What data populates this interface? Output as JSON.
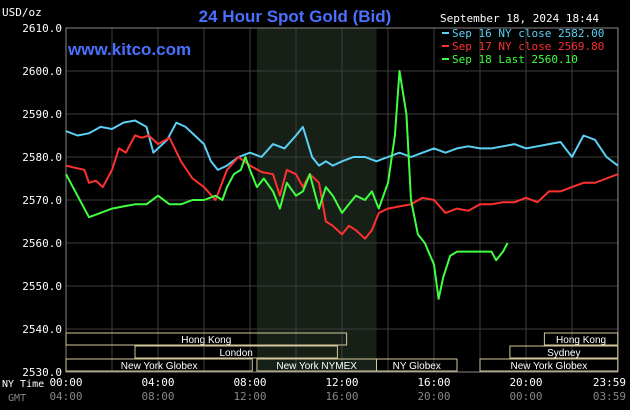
{
  "chart_data": {
    "type": "line",
    "title": "24 Hour Spot Gold (Bid)",
    "brand": "www.kitco.com",
    "timestamp": "September 18, 2024 18:44",
    "y_unit": "USD/oz",
    "ylim": [
      2530,
      2610
    ],
    "y_ticks": [
      "2610.0",
      "2600.0",
      "2590.0",
      "2580.0",
      "2570.0",
      "2560.0",
      "2550.0",
      "2540.0",
      "2530.0"
    ],
    "x_range_hours": [
      0,
      24
    ],
    "x_tick_labels_ny": [
      "00:00",
      "04:00",
      "08:00",
      "12:00",
      "16:00",
      "20:00",
      "23:59"
    ],
    "x_tick_labels_gmt": [
      "04:00",
      "08:00",
      "12:00",
      "16:00",
      "20:00",
      "00:00",
      "03:59"
    ],
    "row_label_ny": "NY Time",
    "row_label_gmt": "GMT",
    "grid": true,
    "legend_position": "top-right",
    "series": [
      {
        "name": "Sep 16 NY close 2582.00",
        "color": "#5ad0f5",
        "x": [
          0,
          0.5,
          1,
          1.5,
          2,
          2.5,
          3,
          3.5,
          3.8,
          4,
          4.4,
          4.8,
          5.2,
          5.6,
          6,
          6.3,
          6.6,
          7,
          7.5,
          8,
          8.5,
          9,
          9.5,
          10,
          10.3,
          10.7,
          11,
          11.3,
          11.6,
          12,
          12.5,
          13,
          13.5,
          14,
          14.5,
          15,
          15.5,
          16,
          16.5,
          17,
          17.5,
          18,
          18.5,
          19,
          19.5,
          20,
          20.5,
          21,
          21.5,
          22,
          22.5,
          23,
          23.5,
          23.99
        ],
        "y": [
          2586,
          2585,
          2585.5,
          2587,
          2586.5,
          2588,
          2588.5,
          2587,
          2581,
          2582,
          2584,
          2588,
          2587,
          2585,
          2583,
          2579,
          2577,
          2578,
          2580,
          2581,
          2580,
          2583,
          2582,
          2585,
          2587,
          2580,
          2578,
          2579,
          2578,
          2579,
          2580,
          2580,
          2579,
          2580,
          2581,
          2580,
          2581,
          2582,
          2581,
          2582,
          2582.5,
          2582,
          2582,
          2582.5,
          2583,
          2582,
          2582.5,
          2583,
          2583.5,
          2580,
          2585,
          2584,
          2580,
          2578
        ]
      },
      {
        "name": "Sep 17 NY close 2569.80",
        "color": "#ff3030",
        "x": [
          0,
          0.4,
          0.8,
          1,
          1.3,
          1.6,
          2,
          2.3,
          2.6,
          3,
          3.3,
          3.6,
          4,
          4.5,
          5,
          5.5,
          6,
          6.5,
          7,
          7.5,
          8,
          8.5,
          9,
          9.3,
          9.6,
          10,
          10.3,
          10.6,
          11,
          11.3,
          11.6,
          12,
          12.3,
          12.6,
          13,
          13.3,
          13.6,
          14,
          14.5,
          15,
          15.5,
          16,
          16.5,
          17,
          17.5,
          18,
          18.5,
          19,
          19.5,
          20,
          20.5,
          21,
          21.5,
          22,
          22.5,
          23,
          23.5,
          23.99
        ],
        "y": [
          2578,
          2577.5,
          2577,
          2574,
          2574.5,
          2573,
          2577,
          2582,
          2581,
          2585,
          2584.5,
          2585,
          2583,
          2584.5,
          2579,
          2575,
          2573,
          2570,
          2577,
          2580,
          2578,
          2576.5,
          2576,
          2571,
          2577,
          2576,
          2573,
          2576,
          2574,
          2565,
          2564,
          2562,
          2564,
          2563,
          2561,
          2563,
          2567,
          2568,
          2568.5,
          2569,
          2570.5,
          2570,
          2567,
          2568,
          2567.5,
          2569,
          2569,
          2569.5,
          2569.5,
          2570.5,
          2569.5,
          2572,
          2572,
          2573,
          2574,
          2574,
          2575,
          2576
        ]
      },
      {
        "name": "Sep 18 Last 2560.10",
        "color": "#40ff40",
        "x": [
          0,
          0.5,
          1,
          1.5,
          2,
          2.5,
          3,
          3.5,
          4,
          4.5,
          5,
          5.5,
          6,
          6.5,
          6.8,
          7,
          7.3,
          7.6,
          7.8,
          8,
          8.3,
          8.6,
          9,
          9.3,
          9.6,
          10,
          10.3,
          10.6,
          11,
          11.3,
          11.6,
          12,
          12.3,
          12.6,
          13,
          13.3,
          13.6,
          14,
          14.3,
          14.5,
          14.8,
          15,
          15.3,
          15.6,
          16,
          16.2,
          16.4,
          16.7,
          17,
          17.5,
          18,
          18.5,
          18.7,
          19,
          19.2
        ],
        "y": [
          2576,
          2571,
          2566,
          2567,
          2568,
          2568.5,
          2569,
          2569,
          2571,
          2569,
          2569,
          2570,
          2570,
          2571,
          2570,
          2573,
          2576,
          2577,
          2580,
          2577,
          2573,
          2575,
          2572,
          2568,
          2574,
          2571,
          2572,
          2576,
          2568,
          2573,
          2571,
          2567,
          2569,
          2571,
          2570,
          2572,
          2568,
          2574,
          2585,
          2600,
          2590,
          2570,
          2562,
          2560,
          2555,
          2547,
          2552,
          2557,
          2558,
          2558,
          2558,
          2558,
          2556,
          2558,
          2560
        ]
      }
    ],
    "markets": [
      {
        "label": "Hong Kong",
        "row": 0,
        "start": 0,
        "end": 12.2
      },
      {
        "label": "Hong Kong",
        "row": 0,
        "start": 20.8,
        "end": 23.99
      },
      {
        "label": "London",
        "row": 1,
        "start": 3,
        "end": 11.8
      },
      {
        "label": "Sydney",
        "row": 1,
        "start": 19.3,
        "end": 23.99
      },
      {
        "label": "New York Globex",
        "row": 2,
        "start": 0,
        "end": 8.1
      },
      {
        "label": "New York NYMEX",
        "row": 2,
        "start": 8.3,
        "end": 13.5
      },
      {
        "label": "NY Globex",
        "row": 2,
        "start": 13.5,
        "end": 17
      },
      {
        "label": "New York Globex",
        "row": 2,
        "start": 18,
        "end": 23.99
      }
    ],
    "shaded_session_hours": [
      8.3,
      13.5
    ]
  }
}
